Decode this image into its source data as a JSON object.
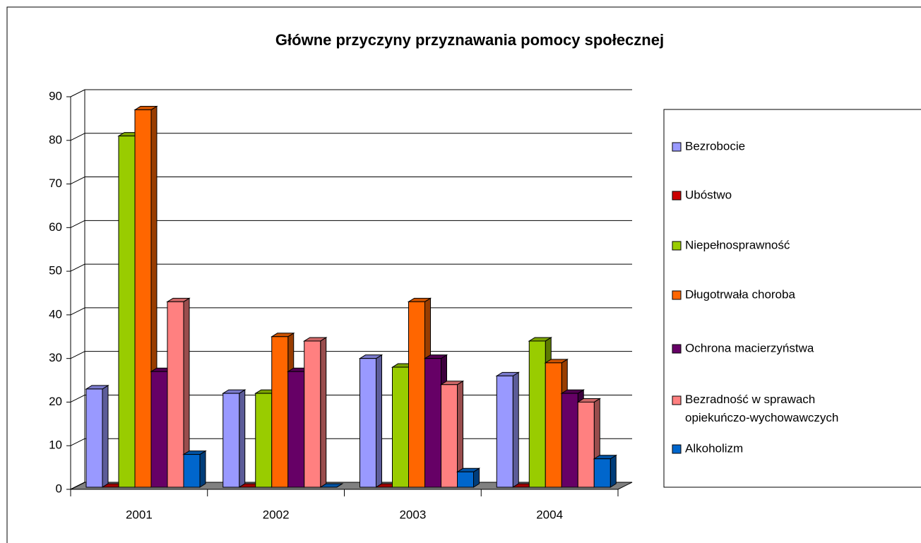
{
  "chart_data": {
    "type": "bar3d",
    "title": "Główne przyczyny przyznawania pomocy społecznej",
    "categories": [
      "2001",
      "2002",
      "2003",
      "2004"
    ],
    "series": [
      {
        "name": "Bezrobocie",
        "color": "#9999ff",
        "values": [
          23,
          22,
          30,
          26
        ]
      },
      {
        "name": "Ubóstwo",
        "color": "#cc0000",
        "values": [
          0,
          0,
          0,
          0
        ]
      },
      {
        "name": "Niepełnosprawność",
        "color": "#99cc00",
        "values": [
          81,
          22,
          28,
          34
        ]
      },
      {
        "name": "Długotrwała choroba",
        "color": "#ff6600",
        "values": [
          87,
          35,
          43,
          29
        ]
      },
      {
        "name": "Ochrona macierzyństwa",
        "color": "#660066",
        "values": [
          27,
          27,
          30,
          22
        ]
      },
      {
        "name": "Bezradność w sprawach opiekuńczo-wychowawczych",
        "color": "#ff8080",
        "values": [
          43,
          34,
          24,
          20
        ]
      },
      {
        "name": "Alkoholizm",
        "color": "#0066cc",
        "values": [
          8,
          0,
          4,
          7
        ]
      }
    ],
    "ylim": [
      0,
      90
    ],
    "yticks": [
      0,
      10,
      20,
      30,
      40,
      50,
      60,
      70,
      80,
      90
    ],
    "grid": true,
    "legend": "right"
  }
}
